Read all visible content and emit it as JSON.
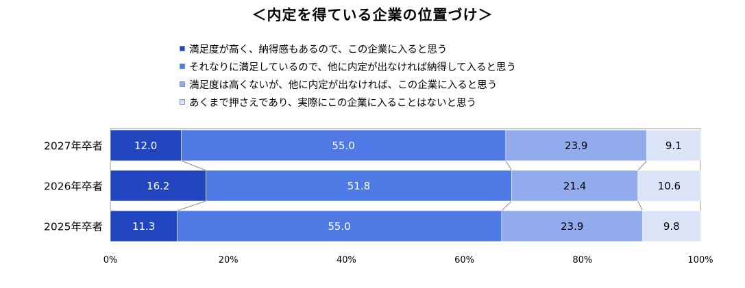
{
  "chart_data": {
    "type": "bar",
    "orientation": "horizontal",
    "stacked": "percent",
    "title": "＜内定を得ている企業の位置づけ＞",
    "categories": [
      "2027年卒者",
      "2026年卒者",
      "2025年卒者"
    ],
    "series": [
      {
        "name": "満足度が高く、納得感もあるので、この企業に入ると思う",
        "color": "#2146c0",
        "label_color": "#ffffff",
        "values": [
          12.0,
          16.2,
          11.3
        ]
      },
      {
        "name": "それなりに満足しているので、他に内定が出なければ納得して入ると思う",
        "color": "#4f79e5",
        "label_color": "#ffffff",
        "values": [
          55.0,
          51.8,
          55.0
        ]
      },
      {
        "name": "満足度は高くないが、他に内定が出なければ、この企業に入ると思う",
        "color": "#91abec",
        "label_color": "#000000",
        "values": [
          23.9,
          21.4,
          23.9
        ]
      },
      {
        "name": "あくまで押さえであり、実際にこの企業に入ることはないと思う",
        "color": "#dbe3f7",
        "label_color": "#000000",
        "values": [
          9.1,
          10.6,
          9.8
        ]
      }
    ],
    "data_labels": [
      [
        "12.0",
        "16.2",
        "11.3"
      ],
      [
        "55.0",
        "51.8",
        "55.0"
      ],
      [
        "23.9",
        "21.4",
        "23.9"
      ],
      [
        "9.1",
        "10.6",
        "9.8"
      ]
    ],
    "x_ticks": [
      "0%",
      "20%",
      "40%",
      "60%",
      "80%",
      "100%"
    ],
    "xlim": [
      0,
      100
    ],
    "legend_position": "top",
    "grid": false,
    "series_connector_lines": true,
    "frame_color": "#999999"
  }
}
